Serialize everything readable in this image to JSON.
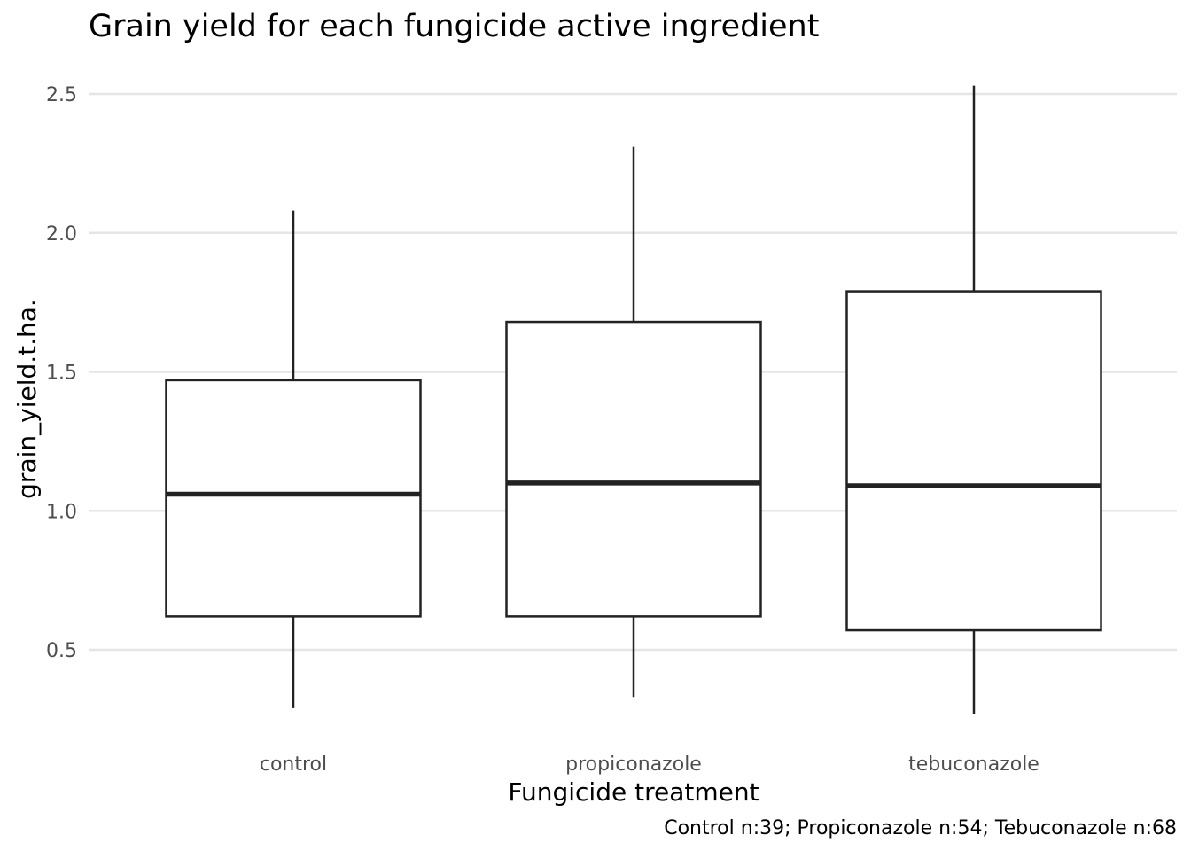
{
  "chart_data": {
    "type": "boxplot",
    "title": "Grain yield for each fungicide active ingredient",
    "xlabel": "Fungicide treatment",
    "ylabel": "grain_yield.t.ha.",
    "caption": "Control n:39; Propiconazole n:54; Tebuconazole n:68",
    "categories": [
      "control",
      "propiconazole",
      "tebuconazole"
    ],
    "ylim": [
      0.22,
      2.55
    ],
    "yticks": [
      0.5,
      1.0,
      1.5,
      2.0,
      2.5
    ],
    "ytick_labels": [
      "0.5",
      "1.0",
      "1.5",
      "2.0",
      "2.5"
    ],
    "grid": true,
    "legend": "none",
    "boxes": [
      {
        "category": "control",
        "min": 0.29,
        "q1": 0.62,
        "median": 1.06,
        "q3": 1.47,
        "max": 2.08
      },
      {
        "category": "propiconazole",
        "min": 0.33,
        "q1": 0.62,
        "median": 1.1,
        "q3": 1.68,
        "max": 2.31
      },
      {
        "category": "tebuconazole",
        "min": 0.27,
        "q1": 0.57,
        "median": 1.09,
        "q3": 1.79,
        "max": 2.53
      }
    ]
  }
}
